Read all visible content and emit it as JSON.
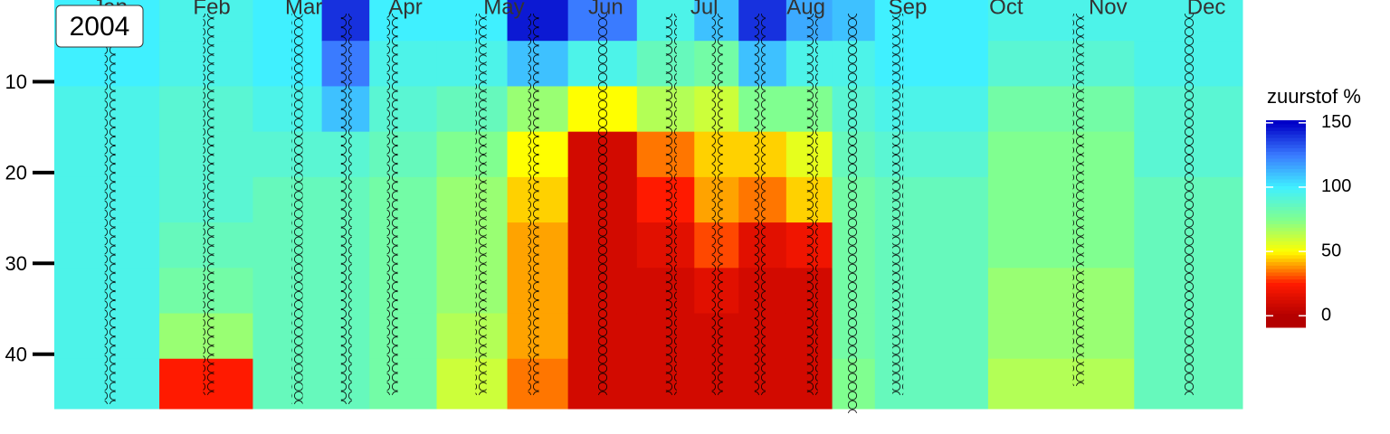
{
  "chart_data": {
    "type": "heatmap",
    "annotation": "2004",
    "colorbar_title": "zuurstof %",
    "x": [
      15,
      45,
      72,
      87,
      101,
      128,
      144,
      165,
      186,
      200,
      213,
      229,
      241,
      255,
      310,
      344
    ],
    "y": [
      3,
      8,
      13,
      18,
      23,
      28,
      33,
      38,
      43
    ],
    "z": [
      [
        100,
        100,
        95,
        95,
        95,
        95,
        95,
        95,
        95
      ],
      [
        95,
        95,
        90,
        90,
        90,
        85,
        80,
        70,
        25
      ],
      [
        100,
        100,
        95,
        90,
        85,
        85,
        85,
        85,
        85
      ],
      [
        140,
        125,
        110,
        90,
        85,
        85,
        85,
        85,
        85
      ],
      [
        100,
        95,
        90,
        85,
        80,
        80,
        80,
        80,
        80
      ],
      [
        100,
        95,
        85,
        75,
        70,
        70,
        70,
        65,
        60
      ],
      [
        145,
        110,
        70,
        50,
        45,
        40,
        40,
        40,
        35
      ],
      [
        125,
        95,
        50,
        10,
        10,
        10,
        10,
        10,
        10
      ],
      [
        95,
        85,
        65,
        35,
        25,
        15,
        10,
        10,
        10
      ],
      [
        110,
        80,
        60,
        45,
        40,
        30,
        15,
        10,
        10
      ],
      [
        140,
        110,
        75,
        45,
        35,
        15,
        10,
        10,
        10
      ],
      [
        115,
        95,
        75,
        55,
        45,
        20,
        10,
        10,
        10
      ],
      [
        110,
        95,
        90,
        85,
        80,
        80,
        80,
        80,
        75
      ],
      [
        100,
        100,
        95,
        90,
        85,
        85,
        85,
        85,
        85
      ],
      [
        95,
        90,
        80,
        75,
        75,
        75,
        70,
        70,
        65
      ],
      [
        95,
        95,
        90,
        90,
        85,
        85,
        85,
        85,
        85
      ]
    ],
    "sample_top": [
      3,
      3,
      3,
      3,
      3,
      3,
      3,
      3,
      3,
      3,
      3,
      3,
      3,
      3,
      3,
      3
    ],
    "sample_bottom": [
      45,
      44,
      45,
      45,
      44,
      44,
      44,
      44,
      44,
      44,
      44,
      44,
      46,
      44,
      43,
      44
    ],
    "xlim": [
      -2,
      360
    ],
    "xticks": [
      {
        "value": 15,
        "label": "Jan"
      },
      {
        "value": 46,
        "label": "Feb"
      },
      {
        "value": 74,
        "label": "Mar"
      },
      {
        "value": 105,
        "label": "Apr"
      },
      {
        "value": 135,
        "label": "May"
      },
      {
        "value": 166,
        "label": "Jun"
      },
      {
        "value": 196,
        "label": "Jul"
      },
      {
        "value": 227,
        "label": "Aug"
      },
      {
        "value": 258,
        "label": "Sep"
      },
      {
        "value": 288,
        "label": "Oct"
      },
      {
        "value": 319,
        "label": "Nov"
      },
      {
        "value": 349,
        "label": "Dec"
      }
    ],
    "ylim": [
      1,
      46
    ],
    "yticks": [
      10,
      20,
      30,
      40
    ],
    "y_reversed": true,
    "clim": [
      -9,
      152
    ],
    "cticks": [
      0,
      50,
      100,
      150
    ],
    "colors": [
      "#b40000",
      "#ff1a00",
      "#ffff00",
      "#80ff90",
      "#40f0ff",
      "#3a7bff",
      "#0000c8"
    ],
    "color_range": [
      0,
      150
    ]
  }
}
